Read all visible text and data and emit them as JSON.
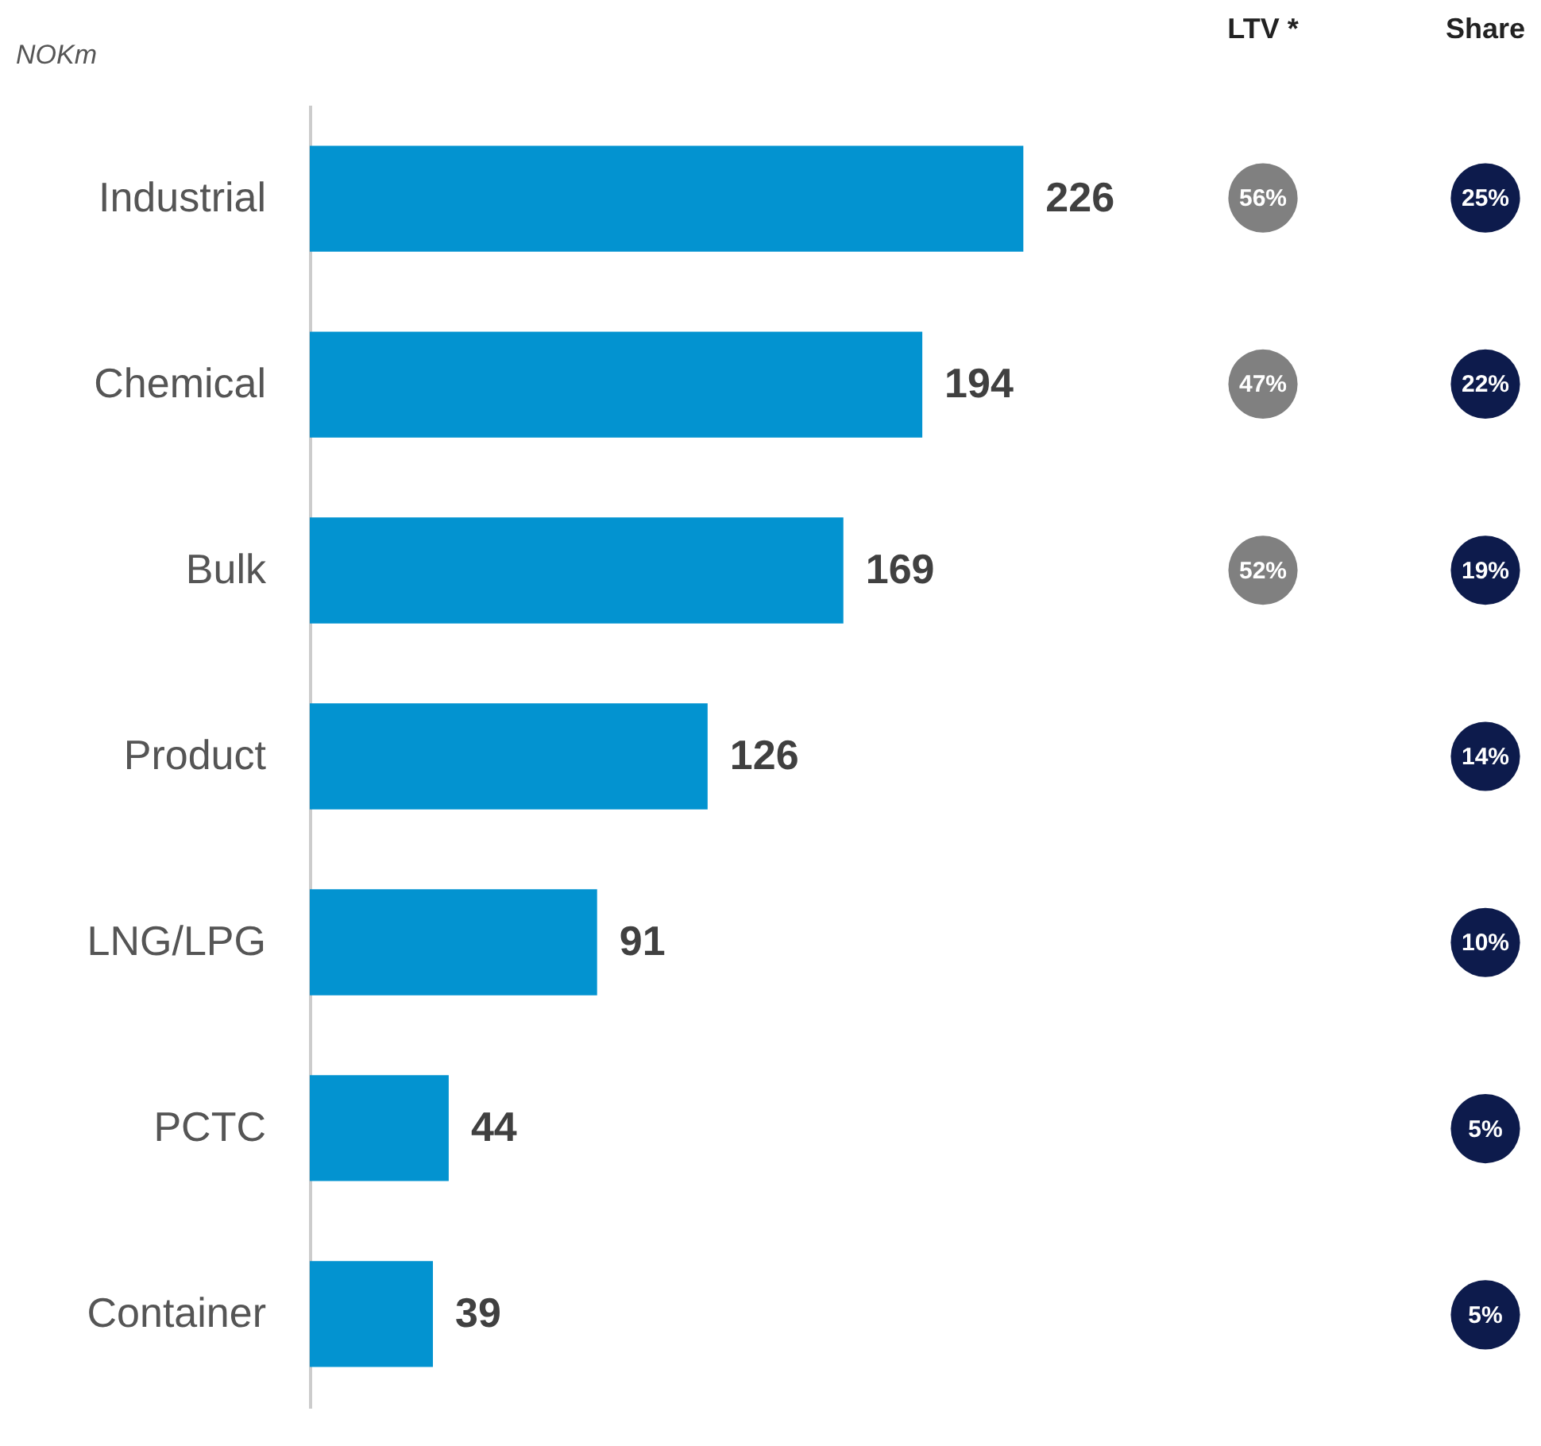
{
  "chart_data": [
    {
      "type": "bar",
      "orientation": "horizontal",
      "title": "NOKm",
      "categories": [
        "Industrial",
        "Chemical",
        "Bulk",
        "Product",
        "LNG/LPG",
        "PCTC",
        "Container"
      ],
      "values": [
        226,
        194,
        169,
        126,
        91,
        44,
        39
      ],
      "color": "#0393d0",
      "data_labels": true,
      "tick_labels": "y"
    },
    {
      "type": "other",
      "title": "LTV *",
      "values": [
        56,
        47,
        52,
        null,
        null,
        null,
        null
      ],
      "value_labels": [
        "56%",
        "47%",
        "52%",
        null,
        null,
        null,
        null
      ],
      "color": "#808080"
    },
    {
      "type": "other",
      "title": "Share",
      "values": [
        25,
        22,
        19,
        14,
        10,
        5,
        5
      ],
      "value_labels": [
        "25%",
        "22%",
        "19%",
        "14%",
        "10%",
        "5%",
        "5%"
      ],
      "color": "#0d1b4c"
    }
  ]
}
